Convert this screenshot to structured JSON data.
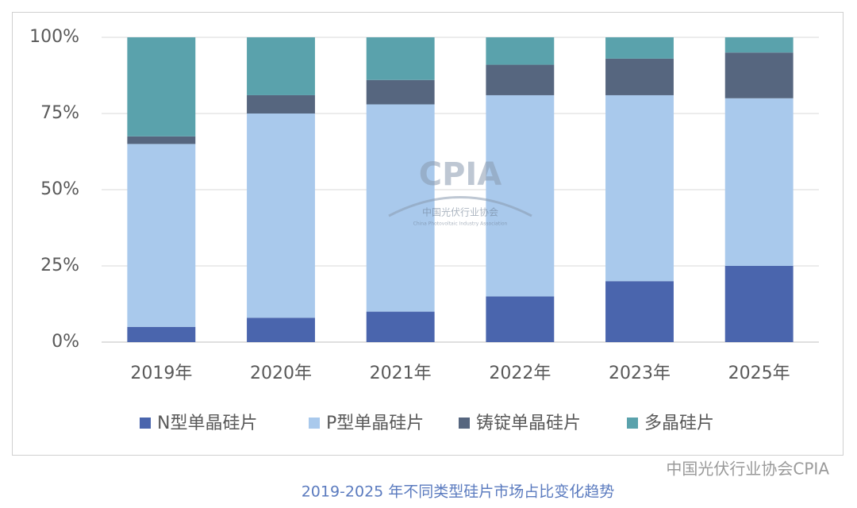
{
  "chart_data": {
    "type": "stacked_bar",
    "title": "2019-2025 年不同类型硅片市场占比变化趋势",
    "annotations": [
      "CPIA",
      "中国光伏行业协会",
      "China Photovoltaic Industry Association",
      "中国光伏行业协会CPIA"
    ],
    "categories": [
      "2019年",
      "2020年",
      "2021年",
      "2022年",
      "2023年",
      "2025年"
    ],
    "series": [
      {
        "name": "N型单晶硅片",
        "color": "#4a65ad",
        "values": [
          5,
          8,
          10,
          15,
          20,
          25
        ]
      },
      {
        "name": "P型单晶硅片",
        "color": "#a9c9ec",
        "values": [
          60,
          67,
          68,
          66,
          61,
          55
        ]
      },
      {
        "name": "铸锭单晶硅片",
        "color": "#56667f",
        "values": [
          2.5,
          6,
          8,
          10,
          12,
          15
        ]
      },
      {
        "name": "多晶硅片",
        "color": "#5aa2ac",
        "values": [
          32.5,
          19,
          14,
          9,
          7,
          5
        ]
      }
    ],
    "ylim": [
      0,
      100
    ],
    "yticks": [
      {
        "value": 0,
        "label": "0%"
      },
      {
        "value": 25,
        "label": "25%"
      },
      {
        "value": 50,
        "label": "50%"
      },
      {
        "value": 75,
        "label": "75%"
      },
      {
        "value": 100,
        "label": "100%"
      }
    ],
    "grid": true,
    "legend": "bottom"
  }
}
